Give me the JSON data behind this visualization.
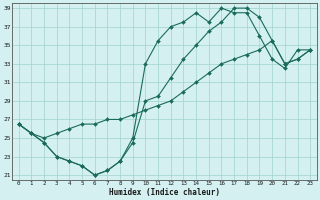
{
  "xlabel": "Humidex (Indice chaleur)",
  "bg_color": "#d4f0f0",
  "grid_color": "#a0d4c8",
  "line_color": "#1a6b5a",
  "xlim": [
    -0.5,
    23.5
  ],
  "ylim": [
    20.5,
    39.5
  ],
  "xticks": [
    0,
    1,
    2,
    3,
    4,
    5,
    6,
    7,
    8,
    9,
    10,
    11,
    12,
    13,
    14,
    15,
    16,
    17,
    18,
    19,
    20,
    21,
    22,
    23
  ],
  "yticks": [
    21,
    23,
    25,
    27,
    29,
    31,
    33,
    35,
    37,
    39
  ],
  "line1_x": [
    0,
    1,
    2,
    3,
    4,
    5,
    6,
    7,
    8,
    9,
    10,
    11,
    12,
    13,
    14,
    15,
    16,
    17,
    18,
    19,
    20,
    21,
    22,
    23
  ],
  "line1_y": [
    26.5,
    25.5,
    24.5,
    23.0,
    22.5,
    22.0,
    21.0,
    21.5,
    22.5,
    25.0,
    33.0,
    35.5,
    37.0,
    37.5,
    38.5,
    37.5,
    39.0,
    38.5,
    38.5,
    36.0,
    33.5,
    32.5,
    34.5,
    34.5
  ],
  "line2_x": [
    0,
    1,
    2,
    3,
    4,
    5,
    6,
    7,
    8,
    9,
    10,
    11,
    12,
    13,
    14,
    15,
    16,
    17,
    18,
    19,
    20,
    21,
    22,
    23
  ],
  "line2_y": [
    26.5,
    25.5,
    24.5,
    23.0,
    22.5,
    22.0,
    21.0,
    21.5,
    22.5,
    24.5,
    29.0,
    29.5,
    31.5,
    33.5,
    35.0,
    36.5,
    37.5,
    39.0,
    39.0,
    38.0,
    35.5,
    33.0,
    33.5,
    34.5
  ],
  "line3_x": [
    0,
    1,
    2,
    3,
    4,
    5,
    6,
    7,
    8,
    9,
    10,
    11,
    12,
    13,
    14,
    15,
    16,
    17,
    18,
    19,
    20,
    21,
    22,
    23
  ],
  "line3_y": [
    26.5,
    25.5,
    25.0,
    25.5,
    26.0,
    26.5,
    26.5,
    27.0,
    27.0,
    27.5,
    28.0,
    28.5,
    29.0,
    30.0,
    31.0,
    32.0,
    33.0,
    33.5,
    34.0,
    34.5,
    35.5,
    33.0,
    33.5,
    34.5
  ]
}
